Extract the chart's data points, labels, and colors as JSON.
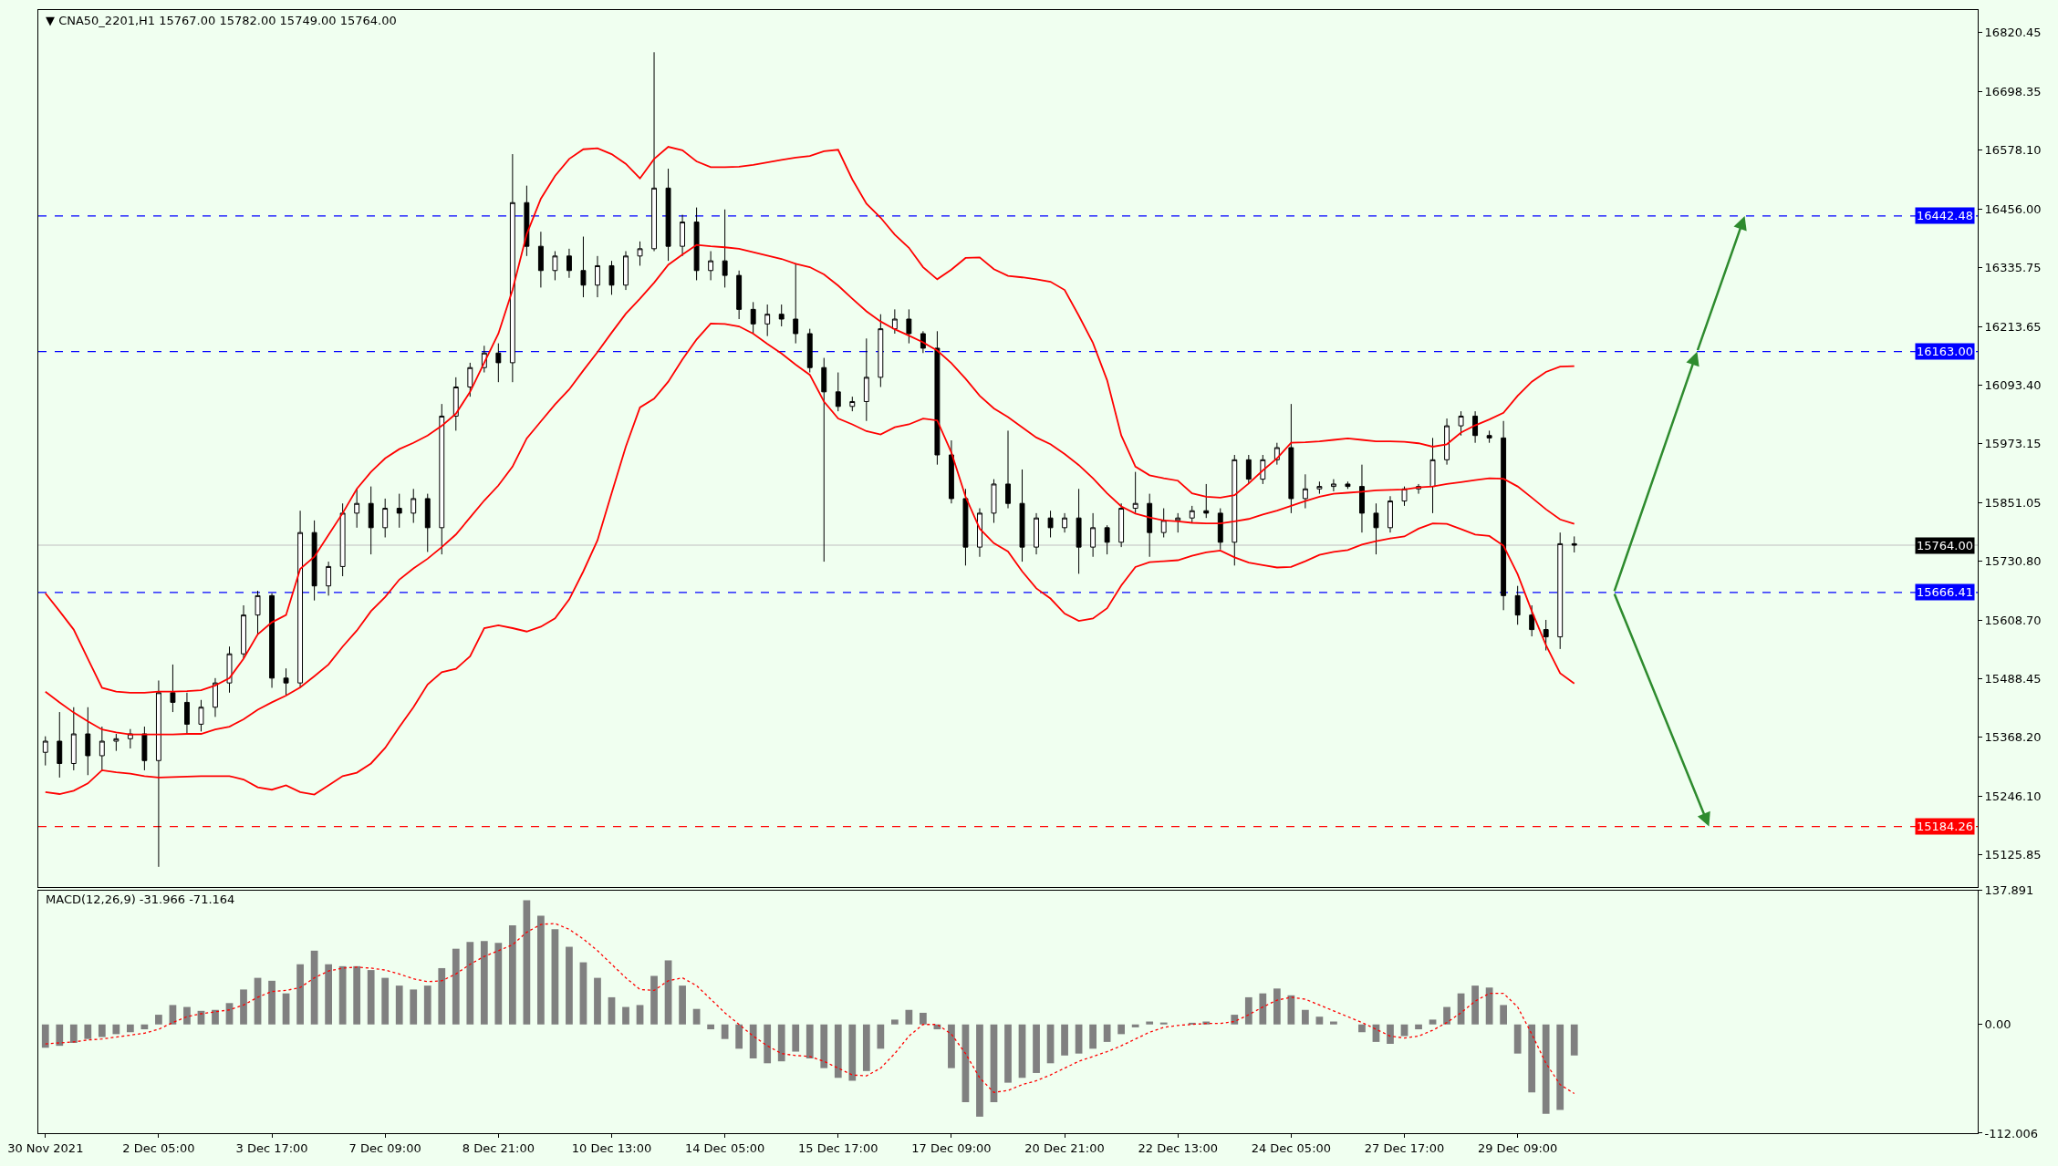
{
  "chart_data": [
    {
      "type": "candlestick",
      "title": "▼ CNA50_2201,H1 15767.00 15782.00 15749.00 15764.00",
      "color": "#000000",
      "categories": [
        null,
        null,
        null,
        null,
        null,
        null,
        null,
        null,
        null,
        null,
        null,
        null,
        null,
        null,
        null,
        null,
        null,
        null,
        null,
        null,
        null,
        null,
        null,
        null,
        null,
        null,
        null,
        null,
        null,
        null,
        null,
        null,
        null,
        null,
        null,
        null,
        null,
        null,
        null,
        null,
        null,
        null,
        null,
        null,
        null,
        null,
        null,
        null,
        null,
        null,
        null,
        null,
        null,
        null,
        null,
        null,
        null,
        null,
        null,
        null,
        null,
        null,
        null,
        null,
        null,
        null,
        null,
        null,
        null,
        null,
        null,
        null,
        null,
        null,
        null,
        null,
        null,
        null,
        null,
        null,
        null,
        null,
        null,
        null,
        null,
        null,
        null,
        null,
        null,
        null,
        null,
        null,
        null,
        null,
        null,
        null,
        null,
        null,
        null,
        null,
        null,
        null,
        null,
        null,
        null,
        null,
        null,
        null,
        null,
        null,
        null,
        null,
        null,
        null,
        null,
        null,
        null,
        null,
        null,
        null,
        null,
        null,
        null,
        null,
        null,
        null,
        null,
        null,
        null,
        null,
        null,
        null,
        null,
        null,
        null,
        null,
        null
      ],
      "ohlc": [
        [
          15337,
          15370,
          15310,
          15360
        ],
        [
          15360,
          15420,
          15285,
          15314
        ],
        [
          15314,
          15430,
          15300,
          15375
        ],
        [
          15375,
          15430,
          15290,
          15330
        ],
        [
          15330,
          15390,
          15300,
          15360
        ],
        [
          15360,
          15375,
          15340,
          15365
        ],
        [
          15365,
          15385,
          15345,
          15375
        ],
        [
          15375,
          15390,
          15300,
          15320
        ],
        [
          15320,
          15485,
          15101,
          15460
        ],
        [
          15460,
          15518,
          15420,
          15440
        ],
        [
          15440,
          15460,
          15375,
          15395
        ],
        [
          15395,
          15445,
          15380,
          15430
        ],
        [
          15430,
          15490,
          15410,
          15480
        ],
        [
          15480,
          15555,
          15460,
          15540
        ],
        [
          15540,
          15640,
          15530,
          15620
        ],
        [
          15620,
          15670,
          15580,
          15660
        ],
        [
          15660,
          15665,
          15470,
          15490
        ],
        [
          15490,
          15510,
          15455,
          15480
        ],
        [
          15480,
          15835,
          15470,
          15790
        ],
        [
          15790,
          15815,
          15650,
          15680
        ],
        [
          15680,
          15730,
          15660,
          15720
        ],
        [
          15720,
          15850,
          15700,
          15830
        ],
        [
          15830,
          15880,
          15800,
          15850
        ],
        [
          15850,
          15885,
          15745,
          15800
        ],
        [
          15800,
          15860,
          15780,
          15840
        ],
        [
          15840,
          15870,
          15800,
          15830
        ],
        [
          15830,
          15880,
          15810,
          15860
        ],
        [
          15860,
          15870,
          15750,
          15800
        ],
        [
          15800,
          16055,
          15745,
          16030
        ],
        [
          16030,
          16110,
          16000,
          16090
        ],
        [
          16090,
          16140,
          16070,
          16130
        ],
        [
          16130,
          16175,
          16120,
          16160
        ],
        [
          16160,
          16180,
          16100,
          16140
        ],
        [
          16140,
          16570,
          16100,
          16470
        ],
        [
          16470,
          16505,
          16360,
          16380
        ],
        [
          16380,
          16410,
          16295,
          16330
        ],
        [
          16330,
          16370,
          16310,
          16360
        ],
        [
          16360,
          16375,
          16315,
          16330
        ],
        [
          16330,
          16400,
          16275,
          16300
        ],
        [
          16300,
          16360,
          16275,
          16340
        ],
        [
          16340,
          16350,
          16280,
          16300
        ],
        [
          16300,
          16370,
          16290,
          16360
        ],
        [
          16360,
          16390,
          16340,
          16375
        ],
        [
          16375,
          16780,
          16370,
          16500
        ],
        [
          16500,
          16540,
          16350,
          16380
        ],
        [
          16380,
          16445,
          16360,
          16430
        ],
        [
          16430,
          16460,
          16310,
          16330
        ],
        [
          16330,
          16370,
          16310,
          16350
        ],
        [
          16350,
          16456,
          16295,
          16320
        ],
        [
          16320,
          16330,
          16230,
          16250
        ],
        [
          16250,
          16265,
          16200,
          16220
        ],
        [
          16220,
          16260,
          16195,
          16240
        ],
        [
          16240,
          16260,
          16215,
          16230
        ],
        [
          16230,
          16345,
          16180,
          16200
        ],
        [
          16200,
          16210,
          16120,
          16130
        ],
        [
          16130,
          16150,
          15730,
          16080
        ],
        [
          16080,
          16120,
          16040,
          16050
        ],
        [
          16050,
          16070,
          16040,
          16060
        ],
        [
          16060,
          16190,
          16020,
          16110
        ],
        [
          16110,
          16240,
          16090,
          16210
        ],
        [
          16210,
          16250,
          16200,
          16230
        ],
        [
          16230,
          16250,
          16180,
          16200
        ],
        [
          16200,
          16205,
          16160,
          16170
        ],
        [
          16170,
          16205,
          15930,
          15950
        ],
        [
          15950,
          15980,
          15850,
          15860
        ],
        [
          15860,
          15880,
          15722,
          15760
        ],
        [
          15760,
          15840,
          15740,
          15830
        ],
        [
          15830,
          15900,
          15810,
          15890
        ],
        [
          15890,
          16000,
          15840,
          15850
        ],
        [
          15850,
          15920,
          15730,
          15760
        ],
        [
          15760,
          15830,
          15745,
          15820
        ],
        [
          15820,
          15835,
          15780,
          15800
        ],
        [
          15800,
          15830,
          15790,
          15820
        ],
        [
          15820,
          15880,
          15705,
          15760
        ],
        [
          15760,
          15830,
          15740,
          15800
        ],
        [
          15800,
          15805,
          15745,
          15770
        ],
        [
          15770,
          15850,
          15760,
          15840
        ],
        [
          15840,
          15915,
          15830,
          15850
        ],
        [
          15850,
          15870,
          15740,
          15790
        ],
        [
          15790,
          15840,
          15780,
          15815
        ],
        [
          15815,
          15830,
          15790,
          15820
        ],
        [
          15820,
          15845,
          15810,
          15835
        ],
        [
          15835,
          15890,
          15820,
          15830
        ],
        [
          15830,
          15840,
          15755,
          15770
        ],
        [
          15770,
          15950,
          15722,
          15940
        ],
        [
          15940,
          15950,
          15890,
          15900
        ],
        [
          15900,
          15950,
          15890,
          15940
        ],
        [
          15940,
          15975,
          15930,
          15965
        ],
        [
          15965,
          16055,
          15830,
          15860
        ],
        [
          15860,
          15910,
          15840,
          15880
        ],
        [
          15880,
          15895,
          15870,
          15885
        ],
        [
          15885,
          15900,
          15875,
          15890
        ],
        [
          15890,
          15895,
          15880,
          15885
        ],
        [
          15885,
          15930,
          15790,
          15830
        ],
        [
          15830,
          15850,
          15745,
          15800
        ],
        [
          15800,
          15865,
          15790,
          15855
        ],
        [
          15855,
          15885,
          15845,
          15880
        ],
        [
          15880,
          15890,
          15870,
          15885
        ],
        [
          15885,
          15985,
          15830,
          15940
        ],
        [
          15940,
          16025,
          15930,
          16010
        ],
        [
          16010,
          16040,
          15990,
          16030
        ],
        [
          16030,
          16040,
          15975,
          15990
        ],
        [
          15990,
          16000,
          15975,
          15985
        ],
        [
          15985,
          16020,
          15630,
          15660
        ],
        [
          15660,
          15680,
          15600,
          15620
        ],
        [
          15620,
          15640,
          15576,
          15590
        ],
        [
          15590,
          15610,
          15547,
          15575
        ],
        [
          15575,
          15790,
          15550,
          15767
        ],
        [
          15767,
          15782,
          15749,
          15764
        ],
        null,
        null,
        null,
        null,
        null,
        null,
        null,
        null,
        null,
        null,
        null,
        null,
        null,
        null,
        null,
        null,
        null,
        null,
        null,
        null,
        null,
        null,
        null,
        null,
        null,
        null,
        null,
        null
      ],
      "series": [
        {
          "type": "line",
          "color": "#ff0000",
          "values": [
            15665,
            15628,
            15590,
            15530,
            15470,
            15462,
            15460,
            15460,
            15462,
            15462,
            15463,
            15465,
            15475,
            15490,
            15530,
            15580,
            15605,
            15620,
            15715,
            15740,
            15785,
            15830,
            15880,
            15915,
            15943,
            15962,
            15975,
            15990,
            16010,
            16035,
            16080,
            16140,
            16200,
            16290,
            16405,
            16478,
            16525,
            16560,
            16580,
            16582,
            16570,
            16550,
            16520,
            16560,
            16585,
            16578,
            16555,
            16543,
            16543,
            16544,
            16548,
            16553,
            16558,
            16563,
            16566,
            16576,
            16579,
            16518,
            16468,
            16439,
            16404,
            16377,
            16337,
            16312,
            16332,
            16356,
            16357,
            16333,
            16319,
            16316,
            16312,
            16307,
            16290,
            16237,
            16181,
            16104,
            15990,
            15926,
            15908,
            15902,
            15897,
            15871,
            15864,
            15862,
            15867,
            15891,
            15918,
            15943,
            15975,
            15976,
            15978,
            15981,
            15984,
            15981,
            15978,
            15978,
            15977,
            15974,
            15967,
            15972,
            15996,
            16011,
            16023,
            16037,
            16072,
            16101,
            16121,
            16132,
            16133,
            null,
            null,
            null,
            null,
            null,
            null,
            null,
            null,
            null,
            null,
            null,
            null,
            null,
            null,
            null,
            null,
            null,
            null,
            null,
            null,
            null,
            null,
            null,
            null,
            null,
            null,
            null,
            null
          ]
        },
        {
          "type": "line",
          "color": "#ff0000",
          "values": [
            15462,
            15440,
            15419,
            15401,
            15384,
            15378,
            15374,
            15374,
            15374,
            15374,
            15375,
            15375,
            15384,
            15390,
            15405,
            15425,
            15440,
            15454,
            15471,
            15494,
            15518,
            15555,
            15588,
            15628,
            15657,
            15693,
            15716,
            15736,
            15760,
            15786,
            15821,
            15856,
            15887,
            15926,
            15984,
            16019,
            16054,
            16085,
            16124,
            16162,
            16202,
            16241,
            16272,
            16305,
            16342,
            16363,
            16383,
            16380,
            16378,
            16375,
            16368,
            16361,
            16354,
            16344,
            16337,
            16322,
            16299,
            16272,
            16246,
            16225,
            16209,
            16196,
            16182,
            16165,
            16139,
            16107,
            16072,
            16046,
            16028,
            16007,
            15986,
            15972,
            15952,
            15929,
            15902,
            15871,
            15844,
            15829,
            15821,
            15815,
            15813,
            15810,
            15809,
            15809,
            15813,
            15818,
            15827,
            15835,
            15845,
            15855,
            15864,
            15870,
            15872,
            15874,
            15877,
            15878,
            15879,
            15883,
            15885,
            15890,
            15894,
            15898,
            15902,
            15901,
            15885,
            15862,
            15838,
            15817,
            15808,
            null,
            null,
            null,
            null,
            null,
            null,
            null,
            null,
            null,
            null,
            null,
            null,
            null,
            null,
            null,
            null,
            null,
            null,
            null,
            null,
            null,
            null,
            null,
            null,
            null,
            null,
            null,
            null
          ]
        },
        {
          "type": "line",
          "color": "#ff0000",
          "values": [
            15255,
            15251,
            15258,
            15273,
            15300,
            15296,
            15293,
            15288,
            15285,
            15286,
            15287,
            15288,
            15288,
            15288,
            15281,
            15265,
            15260,
            15269,
            15255,
            15250,
            15269,
            15288,
            15295,
            15314,
            15346,
            15389,
            15430,
            15477,
            15502,
            15509,
            15535,
            15593,
            15599,
            15593,
            15586,
            15596,
            15613,
            15652,
            15710,
            15774,
            15871,
            15967,
            16048,
            16066,
            16101,
            16147,
            16188,
            16221,
            16220,
            16215,
            16200,
            16179,
            16159,
            16136,
            16115,
            16060,
            16025,
            16013,
            15999,
            15992,
            16007,
            16013,
            16025,
            16021,
            15955,
            15864,
            15798,
            15768,
            15751,
            15710,
            15675,
            15654,
            15623,
            15608,
            15613,
            15634,
            15681,
            15719,
            15729,
            15731,
            15733,
            15742,
            15749,
            15753,
            15739,
            15728,
            15723,
            15718,
            15719,
            15731,
            15744,
            15750,
            15754,
            15765,
            15772,
            15778,
            15782,
            15798,
            15809,
            15808,
            15797,
            15786,
            15783,
            15763,
            15704,
            15628,
            15558,
            15500,
            15479,
            null,
            null,
            null,
            null,
            null,
            null,
            null,
            null,
            null,
            null,
            null,
            null,
            null,
            null,
            null,
            null,
            null,
            null,
            null,
            null,
            null,
            null,
            null,
            null,
            null,
            null,
            null,
            null
          ]
        }
      ],
      "ylim": [
        15059,
        16867
      ],
      "yticks": [
        16820.45,
        16698.35,
        {
          "value": 16578.1,
          "label": "16578.10"
        },
        {
          "value": 16456,
          "label": "16456.00"
        },
        16335.75,
        16213.65,
        {
          "value": 16093.4,
          "label": "16093.40"
        },
        15973.15,
        15851.05,
        {
          "value": 15730.8,
          "label": "15730.80"
        },
        {
          "value": 15608.7,
          "label": "15608.70"
        },
        15488.45,
        {
          "value": 15368.2,
          "label": "15368.20"
        },
        {
          "value": 15246.1,
          "label": "15246.10"
        },
        15125.85
      ],
      "ref_lines": [
        {
          "axis": "y",
          "value": 16442.48,
          "label": "16442.48",
          "color": "#0000ff",
          "line_style": "dashed"
        },
        {
          "axis": "y",
          "value": 16163.0,
          "label": "16163.00",
          "color": "#0000ff",
          "line_style": "dashed"
        },
        {
          "axis": "y",
          "value": 15764.0,
          "label": "15764.00",
          "color": "#c0c0c0",
          "line_style": "solid"
        },
        {
          "axis": "y",
          "value": 15666.41,
          "label": "15666.41",
          "color": "#0000ff",
          "line_style": "dashed"
        },
        {
          "axis": "y",
          "value": 15184.26,
          "label": "15184.26",
          "color": "#ff0000",
          "line_style": "dashed"
        }
      ]
    },
    {
      "type": "bar",
      "title": "MACD(12,26,9) -31.966 -71.164",
      "categories": [
        "30 Nov 2021",
        null,
        null,
        null,
        null,
        null,
        null,
        null,
        "2 Dec 05:00",
        null,
        null,
        null,
        null,
        null,
        null,
        null,
        "3 Dec 17:00",
        null,
        null,
        null,
        null,
        null,
        null,
        null,
        "7 Dec 09:00",
        null,
        null,
        null,
        null,
        null,
        null,
        null,
        "8 Dec 21:00",
        null,
        null,
        null,
        null,
        null,
        null,
        null,
        "10 Dec 13:00",
        null,
        null,
        null,
        null,
        null,
        null,
        null,
        "14 Dec 05:00",
        null,
        null,
        null,
        null,
        null,
        null,
        null,
        "15 Dec 17:00",
        null,
        null,
        null,
        null,
        null,
        null,
        null,
        "17 Dec 09:00",
        null,
        null,
        null,
        null,
        null,
        null,
        null,
        "20 Dec 21:00",
        null,
        null,
        null,
        null,
        null,
        null,
        null,
        "22 Dec 13:00",
        null,
        null,
        null,
        null,
        null,
        null,
        null,
        "24 Dec 05:00",
        null,
        null,
        null,
        null,
        null,
        null,
        null,
        "27 Dec 17:00",
        null,
        null,
        null,
        null,
        null,
        null,
        null,
        "29 Dec 09:00",
        null,
        null,
        null,
        null,
        null,
        null,
        null,
        null,
        null,
        null,
        null,
        null,
        null,
        null,
        null,
        null,
        null,
        null,
        null,
        null,
        null,
        null,
        null,
        null,
        null,
        null,
        null,
        null,
        null,
        null,
        null,
        null
      ],
      "series": [
        {
          "type": "bar",
          "color": "#808080",
          "values": [
            -24,
            -22,
            -19,
            -15,
            -13,
            -10,
            -8,
            -5,
            10,
            20,
            18,
            14,
            15,
            22,
            36,
            48,
            45,
            32,
            62,
            76,
            62,
            60,
            60,
            56,
            48,
            40,
            36,
            40,
            58,
            78,
            85,
            86,
            84,
            102,
            128,
            112,
            98,
            80,
            64,
            48,
            28,
            18,
            20,
            50,
            66,
            40,
            16,
            -5,
            -15,
            -25,
            -35,
            -40,
            -38,
            -28,
            -35,
            -45,
            -55,
            -58,
            -48,
            -25,
            5,
            15,
            12,
            -5,
            -45,
            -80,
            -95,
            -80,
            -60,
            -55,
            -50,
            -40,
            -32,
            -30,
            -25,
            -18,
            -10,
            -3,
            3,
            2,
            0,
            1,
            3,
            0,
            10,
            28,
            32,
            37,
            30,
            15,
            8,
            3,
            0,
            -8,
            -18,
            -20,
            -12,
            -5,
            5,
            18,
            32,
            40,
            38,
            20,
            -30,
            -70,
            -92,
            -88,
            -31.966,
            null,
            null,
            null,
            null,
            null,
            null,
            null,
            null,
            null,
            null,
            null,
            null,
            null,
            null,
            null,
            null,
            null,
            null,
            null,
            null,
            null,
            null,
            null,
            null,
            null,
            null,
            null,
            null
          ]
        },
        {
          "type": "line",
          "color": "#ff0000",
          "line_style": "dotted",
          "values": [
            -20,
            -19,
            -18,
            -16,
            -15,
            -13,
            -11,
            -9,
            -5,
            2,
            8,
            11,
            13,
            15,
            20,
            28,
            34,
            35,
            38,
            48,
            55,
            58,
            59,
            58,
            56,
            52,
            47,
            44,
            45,
            52,
            62,
            70,
            76,
            82,
            95,
            103,
            104,
            98,
            88,
            76,
            62,
            48,
            36,
            35,
            45,
            48,
            40,
            26,
            12,
            0,
            -12,
            -22,
            -30,
            -32,
            -33,
            -38,
            -45,
            -52,
            -53,
            -45,
            -30,
            -12,
            0,
            0,
            -10,
            -30,
            -55,
            -70,
            -68,
            -62,
            -58,
            -52,
            -45,
            -38,
            -33,
            -28,
            -22,
            -15,
            -8,
            -3,
            -1,
            0,
            1,
            1,
            3,
            10,
            18,
            25,
            28,
            26,
            20,
            14,
            8,
            2,
            -5,
            -12,
            -14,
            -12,
            -6,
            2,
            12,
            24,
            32,
            32,
            18,
            -10,
            -40,
            -62,
            -71.164,
            null,
            null,
            null,
            null,
            null,
            null,
            null,
            null,
            null,
            null,
            null,
            null,
            null,
            null,
            null,
            null,
            null,
            null,
            null,
            null,
            null,
            null,
            null,
            null,
            null,
            null,
            null,
            null
          ]
        }
      ],
      "ylim": [
        -112.006,
        137.891
      ],
      "yticks": [
        137.891,
        {
          "value": 0,
          "label": "0.00"
        },
        -112.006
      ]
    }
  ]
}
